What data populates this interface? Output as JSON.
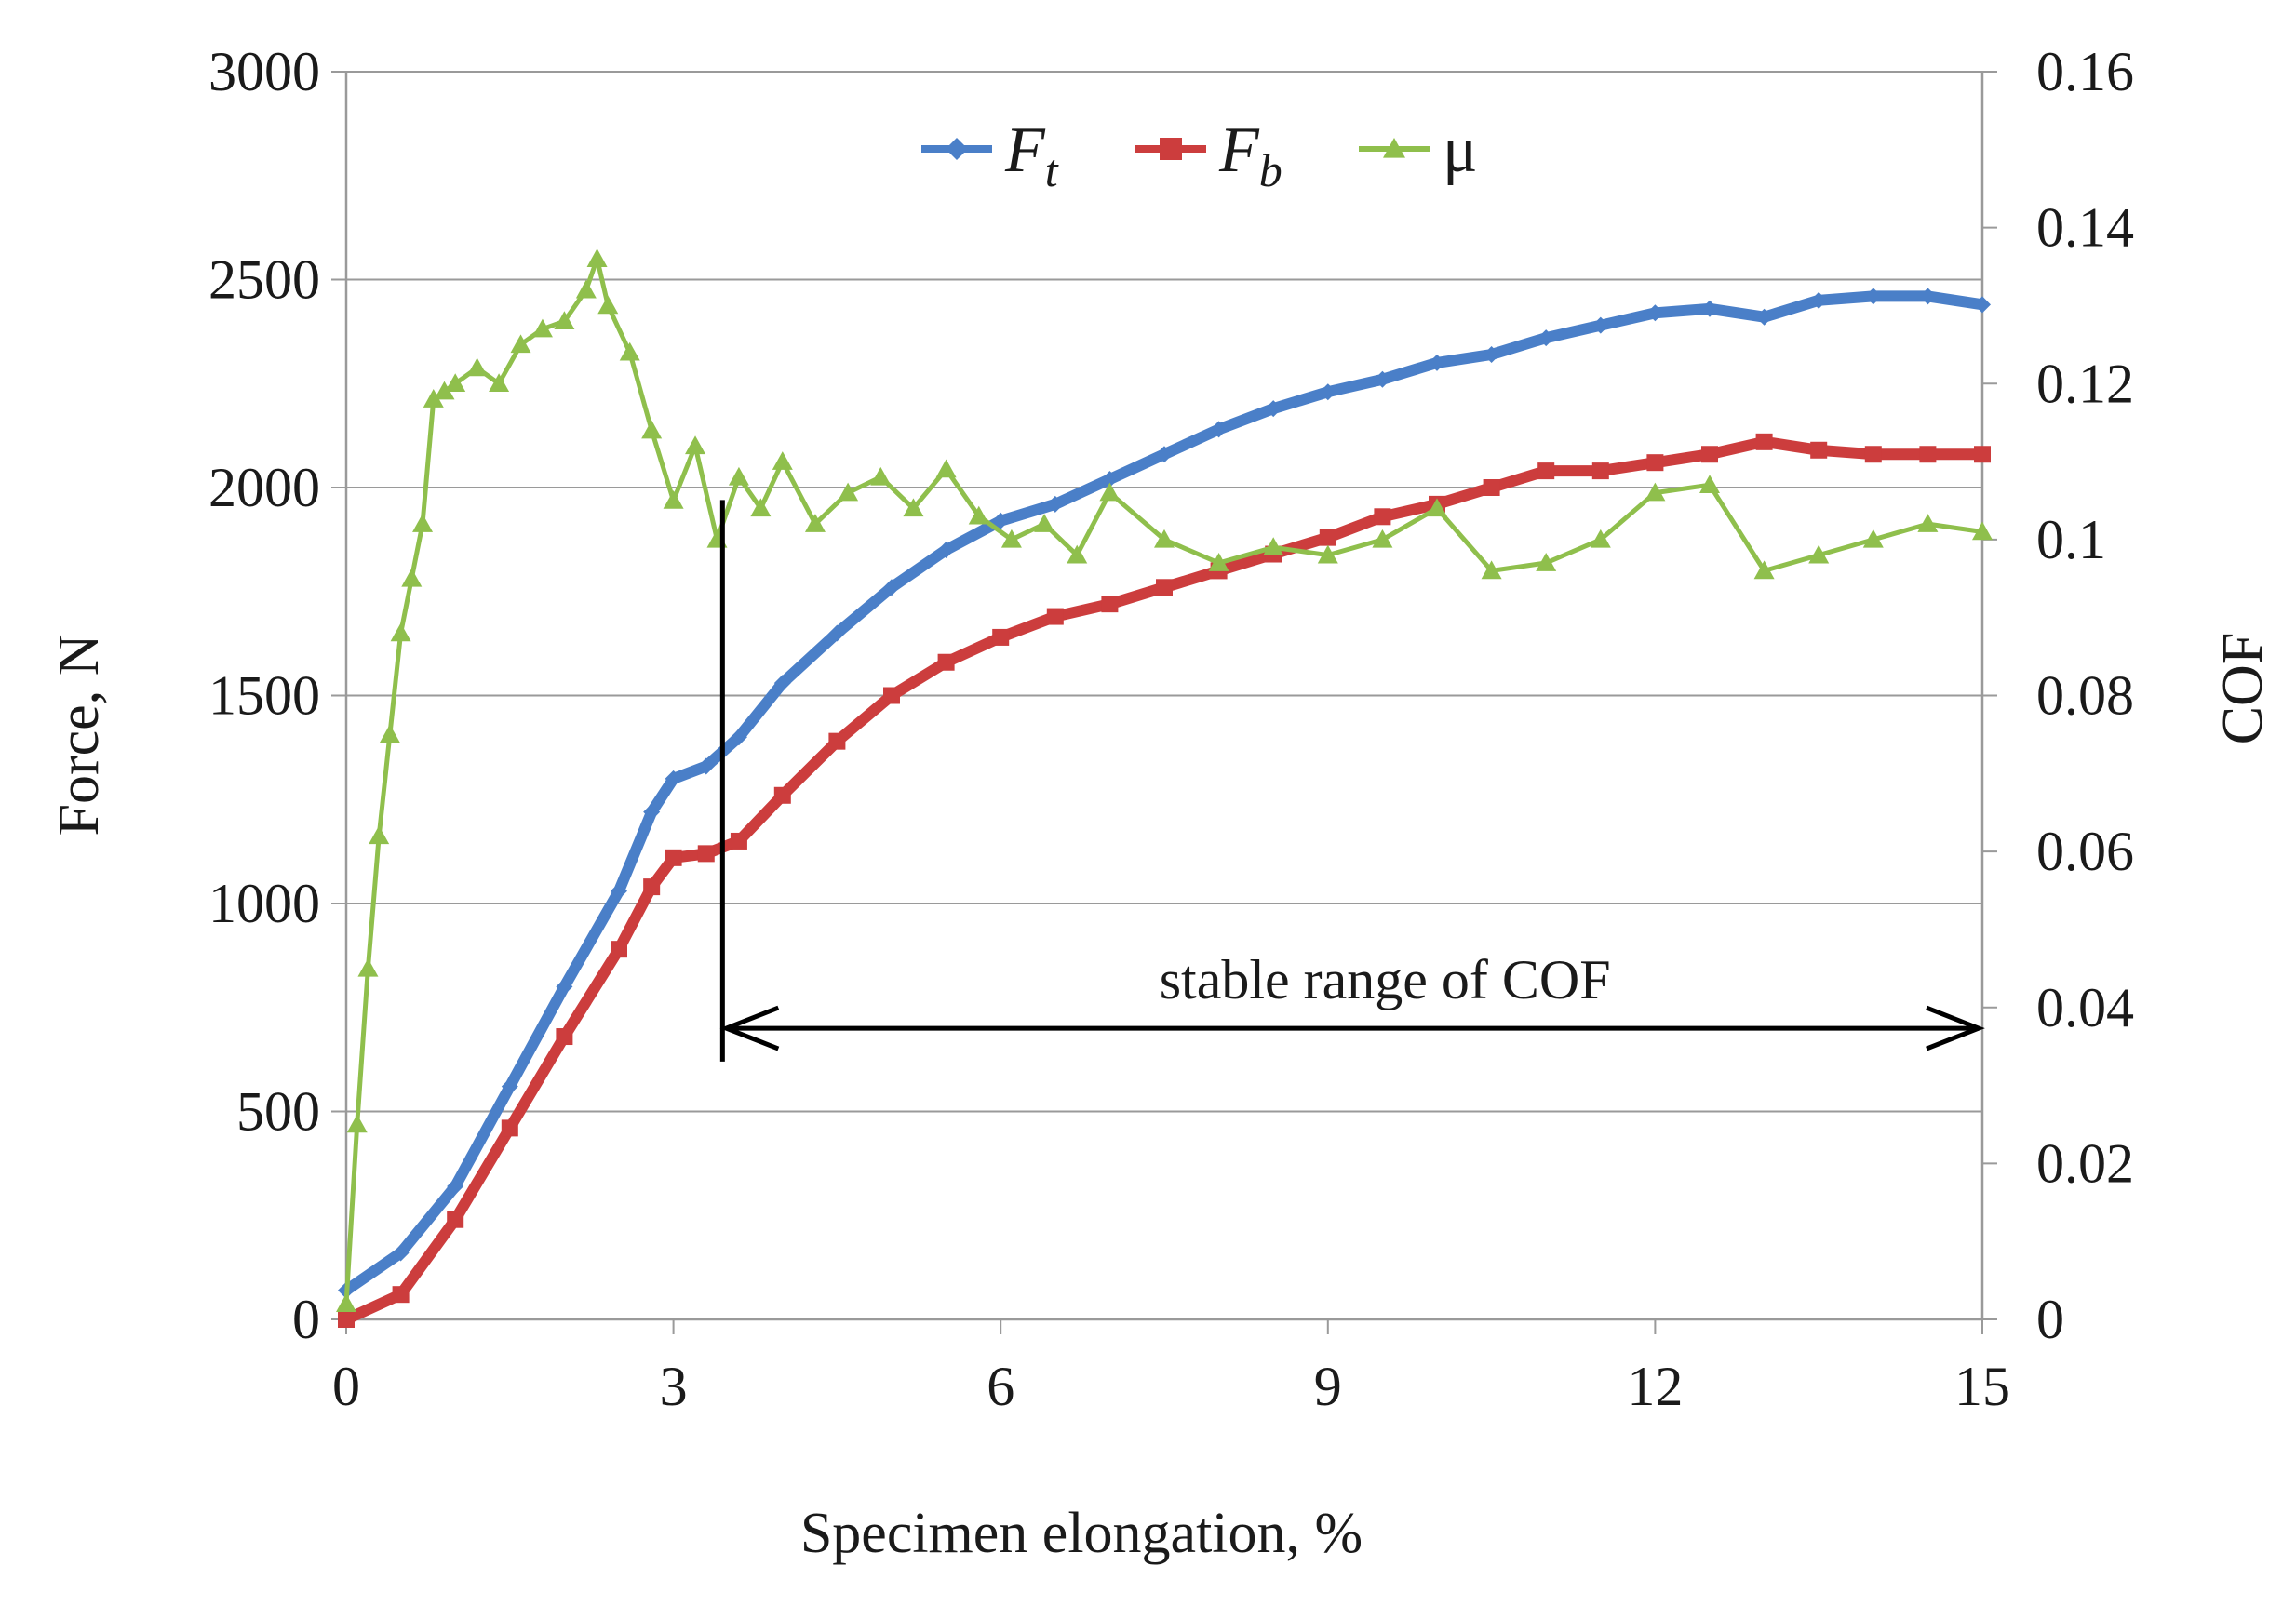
{
  "chart_data": {
    "type": "line",
    "title": "",
    "xlabel": "Specimen elongation, %",
    "ylabel": "Force, N",
    "y2label": "COF",
    "xlim": [
      0,
      15
    ],
    "ylim": [
      0,
      3000
    ],
    "y2lim": [
      0,
      0.16
    ],
    "x_ticks": [
      0,
      3,
      6,
      9,
      12,
      15
    ],
    "x_tick_labels": [
      "0",
      "3",
      "6",
      "9",
      "12",
      "15"
    ],
    "y_ticks": [
      0,
      500,
      1000,
      1500,
      2000,
      2500,
      3000
    ],
    "y_tick_labels": [
      "0",
      "500",
      "1000",
      "1500",
      "2000",
      "2500",
      "3000"
    ],
    "y2_ticks": [
      0,
      0.02,
      0.04,
      0.06,
      0.08,
      0.1,
      0.12,
      0.14,
      0.16
    ],
    "y2_tick_labels": [
      "0",
      "0.02",
      "0.04",
      "0.06",
      "0.08",
      "0.1",
      "0.12",
      "0.14",
      "0.16"
    ],
    "grid": true,
    "legend_position": "top-center",
    "series": [
      {
        "name": "F_t",
        "legend_main": "F",
        "legend_sub": "t",
        "color": "#4a7fc8",
        "axis": "left",
        "marker": "diamond",
        "x": [
          0,
          0.5,
          1,
          1.5,
          2,
          2.5,
          2.8,
          3,
          3.3,
          3.6,
          4,
          4.5,
          5,
          5.5,
          6,
          6.5,
          7,
          7.5,
          8,
          8.5,
          9,
          9.5,
          10,
          10.5,
          11,
          11.5,
          12,
          12.5,
          13,
          13.5,
          14,
          14.5,
          15
        ],
        "y": [
          70,
          160,
          320,
          560,
          800,
          1030,
          1220,
          1300,
          1330,
          1400,
          1530,
          1650,
          1760,
          1850,
          1920,
          1960,
          2020,
          2080,
          2140,
          2190,
          2230,
          2260,
          2300,
          2320,
          2360,
          2390,
          2420,
          2430,
          2410,
          2450,
          2460,
          2460,
          2440
        ]
      },
      {
        "name": "F_b",
        "legend_main": "F",
        "legend_sub": "b",
        "color": "#cc3d3d",
        "axis": "left",
        "marker": "square",
        "x": [
          0,
          0.5,
          1,
          1.5,
          2,
          2.5,
          2.8,
          3,
          3.3,
          3.6,
          4,
          4.5,
          5,
          5.5,
          6,
          6.5,
          7,
          7.5,
          8,
          8.5,
          9,
          9.5,
          10,
          10.5,
          11,
          11.5,
          12,
          12.5,
          13,
          13.5,
          14,
          14.5,
          15
        ],
        "y": [
          0,
          60,
          240,
          460,
          680,
          890,
          1040,
          1110,
          1120,
          1150,
          1260,
          1390,
          1500,
          1580,
          1640,
          1690,
          1720,
          1760,
          1800,
          1840,
          1880,
          1930,
          1960,
          2000,
          2040,
          2040,
          2060,
          2080,
          2110,
          2090,
          2080,
          2080,
          2080
        ]
      },
      {
        "name": "μ",
        "legend_main": "μ",
        "legend_sub": "",
        "color": "#8fbf4c",
        "axis": "right",
        "marker": "triangle",
        "x": [
          0,
          0.1,
          0.2,
          0.3,
          0.4,
          0.5,
          0.6,
          0.7,
          0.8,
          0.9,
          1.0,
          1.2,
          1.4,
          1.6,
          1.8,
          2.0,
          2.2,
          2.3,
          2.4,
          2.6,
          2.8,
          3.0,
          3.2,
          3.4,
          3.6,
          3.8,
          4.0,
          4.3,
          4.6,
          4.9,
          5.2,
          5.5,
          5.8,
          6.1,
          6.4,
          6.7,
          7.0,
          7.5,
          8.0,
          8.5,
          9.0,
          9.5,
          10.0,
          10.5,
          11.0,
          11.5,
          12.0,
          12.5,
          13.0,
          13.5,
          14.0,
          14.5,
          15.0
        ],
        "y": [
          0.002,
          0.025,
          0.045,
          0.062,
          0.075,
          0.088,
          0.095,
          0.102,
          0.118,
          0.119,
          0.12,
          0.122,
          0.12,
          0.125,
          0.127,
          0.128,
          0.132,
          0.136,
          0.13,
          0.124,
          0.114,
          0.105,
          0.112,
          0.1,
          0.108,
          0.104,
          0.11,
          0.102,
          0.106,
          0.108,
          0.104,
          0.109,
          0.103,
          0.1,
          0.102,
          0.098,
          0.106,
          0.1,
          0.097,
          0.099,
          0.098,
          0.1,
          0.104,
          0.096,
          0.097,
          0.1,
          0.106,
          0.107,
          0.096,
          0.098,
          0.1,
          0.102,
          0.101
        ]
      }
    ],
    "annotations": [
      {
        "text": "stable range of COF",
        "x_start": 3.45,
        "x_end": 15,
        "y_arrow": 700,
        "y_marker_top": 1970,
        "y_marker_bottom": 620
      }
    ]
  }
}
